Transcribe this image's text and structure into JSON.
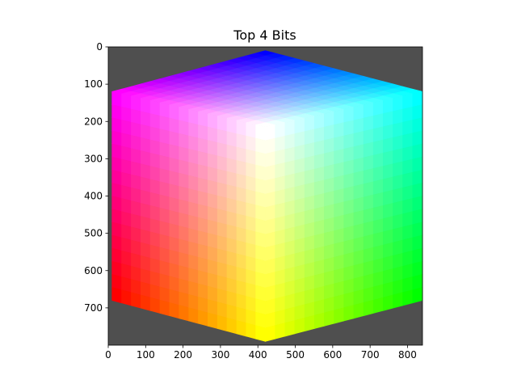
{
  "chart_data": {
    "type": "image",
    "title": "Top 4 Bits",
    "xlabel": "",
    "ylabel": "",
    "xlim": [
      0,
      840
    ],
    "ylim": [
      800,
      0
    ],
    "y_inverted": true,
    "xticks": [
      0,
      100,
      200,
      300,
      400,
      500,
      600,
      700,
      800
    ],
    "yticks": [
      0,
      100,
      200,
      300,
      400,
      500,
      600,
      700
    ],
    "background_color": "#4f4f4f",
    "levels_per_channel": 16,
    "cube": {
      "top_vertex": [
        420,
        10
      ],
      "upper_left_vertex": [
        10,
        120
      ],
      "upper_right_vertex": [
        840,
        120
      ],
      "center_vertex": [
        420,
        215
      ],
      "lower_left_vertex": [
        10,
        680
      ],
      "lower_right_vertex": [
        840,
        680
      ],
      "bottom_vertex": [
        420,
        790
      ]
    },
    "corner_colors": {
      "top": "#0000ff",
      "upper_left": "#ff00ff",
      "upper_right": "#00ffff",
      "center": "#ffffff",
      "lower_left": "#ff0000",
      "lower_right": "#00ff00",
      "bottom": "#ffff00"
    },
    "grid": false,
    "legend": "none"
  }
}
